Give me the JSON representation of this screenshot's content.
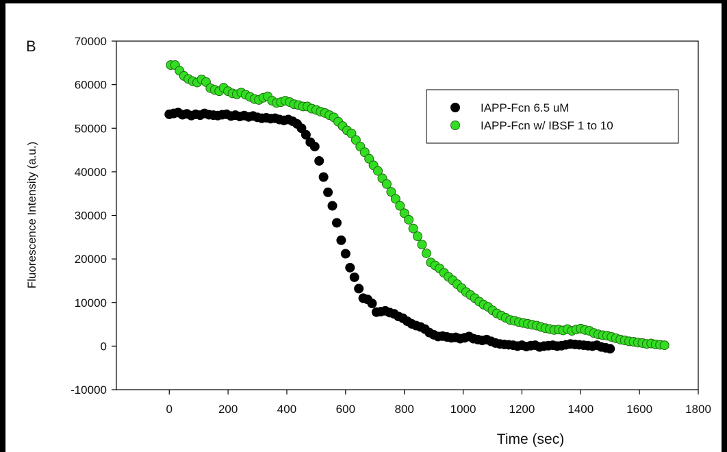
{
  "chart_data": {
    "type": "scatter",
    "panel_label": "B",
    "xlabel": "Time (sec)",
    "ylabel": "Fluorescence Intensity (a.u.)",
    "xlim": [
      -180,
      1800
    ],
    "ylim": [
      -10000,
      70000
    ],
    "x_ticks": [
      0,
      200,
      400,
      600,
      800,
      1000,
      1200,
      1400,
      1600,
      1800
    ],
    "x_tick_labels": [
      "0",
      "200",
      "400",
      "600",
      "800",
      "1000",
      "1200",
      "1400",
      "1600",
      "1800"
    ],
    "y_ticks": [
      -10000,
      0,
      10000,
      20000,
      30000,
      40000,
      50000,
      60000,
      70000
    ],
    "y_tick_labels": [
      "-10000",
      "0",
      "10000",
      "20000",
      "30000",
      "40000",
      "50000",
      "60000",
      "70000"
    ],
    "grid": false,
    "legend_position": "top-right",
    "series": [
      {
        "name": "IAPP-Fcn 6.5 uM",
        "color": "#000000",
        "edge": "#000000",
        "x": [
          0,
          15,
          30,
          45,
          60,
          75,
          90,
          105,
          120,
          135,
          150,
          165,
          180,
          195,
          210,
          225,
          240,
          255,
          270,
          285,
          300,
          315,
          330,
          345,
          360,
          375,
          390,
          405,
          420,
          435,
          450,
          465,
          480,
          495,
          510,
          525,
          540,
          555,
          570,
          585,
          600,
          615,
          630,
          645,
          660,
          675,
          690,
          705,
          720,
          735,
          750,
          765,
          780,
          795,
          810,
          825,
          840,
          855,
          870,
          885,
          900,
          915,
          930,
          945,
          960,
          975,
          990,
          1005,
          1020,
          1035,
          1050,
          1065,
          1080,
          1095,
          1110,
          1125,
          1140,
          1155,
          1170,
          1185,
          1200,
          1215,
          1230,
          1245,
          1260,
          1275,
          1290,
          1305,
          1320,
          1335,
          1350,
          1365,
          1380,
          1395,
          1410,
          1425,
          1440,
          1455,
          1470,
          1485,
          1500
        ],
        "y": [
          53200,
          53400,
          53600,
          53100,
          53300,
          52900,
          53200,
          53000,
          53400,
          53100,
          53000,
          52900,
          53100,
          53200,
          52800,
          53000,
          52700,
          52900,
          52600,
          52800,
          52500,
          52300,
          52400,
          52200,
          52300,
          52000,
          51800,
          52000,
          51600,
          51000,
          50000,
          48500,
          46800,
          45800,
          42500,
          38800,
          35300,
          32200,
          28300,
          24300,
          21200,
          18000,
          15800,
          13200,
          11000,
          10700,
          9800,
          7800,
          7900,
          8100,
          7700,
          7400,
          6800,
          6400,
          5700,
          5100,
          4700,
          4400,
          3900,
          3100,
          2600,
          2200,
          2300,
          2100,
          1900,
          2000,
          1700,
          1900,
          2200,
          1700,
          1500,
          1300,
          1500,
          1100,
          700,
          500,
          400,
          300,
          200,
          0,
          200,
          -100,
          100,
          200,
          -200,
          0,
          100,
          200,
          0,
          100,
          300,
          500,
          400,
          300,
          200,
          100,
          0,
          200,
          -200,
          -400,
          -600
        ]
      },
      {
        "name": "IAPP-Fcn w/ IBSF 1 to 10",
        "color": "#33dd22",
        "edge": "#1f6b12",
        "x": [
          5,
          20,
          35,
          50,
          65,
          80,
          95,
          110,
          125,
          140,
          155,
          170,
          185,
          200,
          215,
          230,
          245,
          260,
          275,
          290,
          305,
          320,
          335,
          350,
          365,
          380,
          395,
          410,
          425,
          440,
          455,
          470,
          485,
          500,
          515,
          530,
          545,
          560,
          575,
          590,
          605,
          620,
          635,
          650,
          665,
          680,
          695,
          710,
          725,
          740,
          755,
          770,
          785,
          800,
          815,
          830,
          845,
          860,
          875,
          890,
          905,
          920,
          935,
          950,
          965,
          980,
          995,
          1010,
          1025,
          1040,
          1055,
          1070,
          1085,
          1100,
          1115,
          1130,
          1145,
          1160,
          1175,
          1190,
          1205,
          1220,
          1235,
          1250,
          1265,
          1280,
          1295,
          1310,
          1325,
          1340,
          1355,
          1370,
          1385,
          1400,
          1415,
          1430,
          1445,
          1460,
          1475,
          1490,
          1505,
          1520,
          1535,
          1550,
          1565,
          1580,
          1595,
          1610,
          1625,
          1640,
          1655,
          1670,
          1685
        ],
        "y": [
          64500,
          64500,
          63200,
          62000,
          61300,
          60800,
          60500,
          61200,
          60600,
          59200,
          58800,
          58500,
          59300,
          58500,
          58000,
          57800,
          58200,
          57700,
          57200,
          56700,
          56500,
          57000,
          57300,
          56300,
          55800,
          56000,
          56300,
          56000,
          55500,
          55300,
          55000,
          55000,
          54500,
          54200,
          53800,
          53500,
          53000,
          52500,
          51500,
          50500,
          49500,
          48800,
          47300,
          45800,
          44500,
          43000,
          41500,
          40200,
          38500,
          37200,
          35400,
          33800,
          32200,
          30500,
          29000,
          27000,
          25200,
          23300,
          21300,
          19200,
          18500,
          17800,
          16800,
          15900,
          15100,
          14200,
          13300,
          12400,
          11700,
          11000,
          10200,
          9500,
          9000,
          8200,
          7500,
          7000,
          6500,
          6000,
          5800,
          5500,
          5300,
          5100,
          4900,
          4700,
          4400,
          4100,
          3900,
          3700,
          3800,
          3600,
          3900,
          3500,
          3800,
          4000,
          3700,
          3500,
          3000,
          2700,
          2500,
          2400,
          2100,
          1800,
          1500,
          1300,
          1100,
          1000,
          800,
          700,
          500,
          600,
          400,
          300,
          200
        ]
      }
    ]
  }
}
